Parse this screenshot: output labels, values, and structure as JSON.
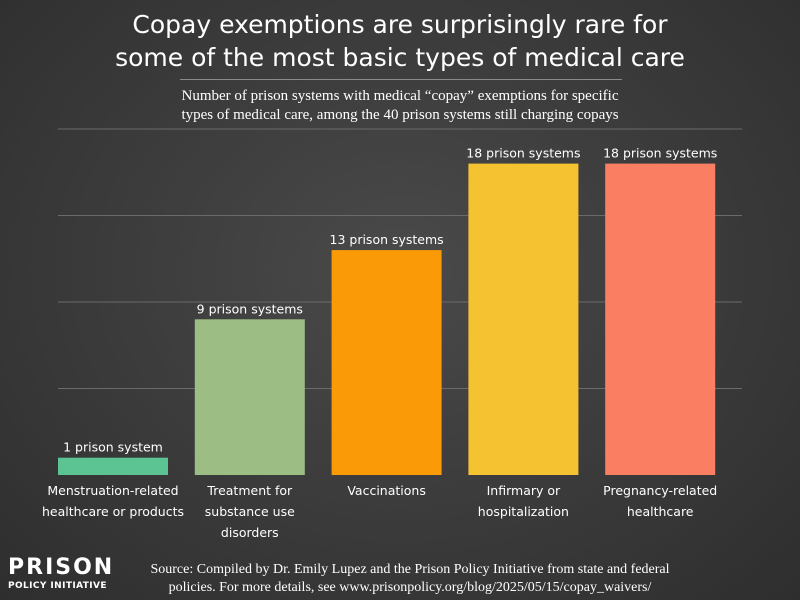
{
  "title_lines": [
    "Copay exemptions are surprisingly rare for",
    "some of the most basic types of medical care"
  ],
  "subtitle_lines": [
    "Number of prison systems with medical “copay” exemptions for specific",
    "types of medical care, among the 40 prison systems still charging copays"
  ],
  "chart_data": {
    "type": "bar",
    "title": "Copay exemptions are surprisingly rare for some of the most basic types of medical care",
    "xlabel": "",
    "ylabel": "",
    "ylim": [
      0,
      20
    ],
    "grid": true,
    "categories": [
      "Menstruation-related healthcare or products",
      "Treatment for substance use disorders",
      "Vaccinations",
      "Infirmary or hospitalization",
      "Pregnancy-related healthcare"
    ],
    "category_label_lines": [
      [
        "Menstruation-related",
        "healthcare or products"
      ],
      [
        "Treatment for",
        "substance use",
        "disorders"
      ],
      [
        "Vaccinations"
      ],
      [
        "Infirmary or",
        "hospitalization"
      ],
      [
        "Pregnancy-related",
        "healthcare"
      ]
    ],
    "values": [
      1,
      9,
      13,
      18,
      18
    ],
    "data_labels": [
      "1 prison system",
      "9 prison systems",
      "13 prison systems",
      "18 prison systems",
      "18 prison systems"
    ],
    "colors": [
      "#5cc492",
      "#9cbd83",
      "#f99a06",
      "#f5c232",
      "#fa7f62"
    ]
  },
  "logo": {
    "line1": "PRISON",
    "line2": "POLICY INITIATIVE"
  },
  "source_lines": [
    "Source: Compiled by Dr. Emily Lupez and the Prison Policy Initiative from state and federal",
    "policies. For more details, see www.prisonpolicy.org/blog/2025/05/15/copay_waivers/"
  ],
  "colors": {
    "gridline": "#6a6a6a",
    "text": "#ffffff"
  }
}
